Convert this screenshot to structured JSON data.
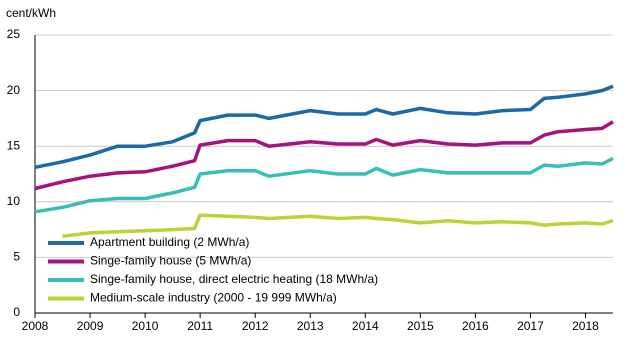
{
  "chart_data": {
    "type": "line",
    "y_label": "cent/kWh",
    "x": [
      2008,
      2008.5,
      2009,
      2009.5,
      2010,
      2010.5,
      2010.9,
      2011,
      2011.5,
      2012,
      2012.25,
      2013,
      2013.5,
      2014,
      2014.2,
      2014.5,
      2015,
      2015.5,
      2016,
      2016.5,
      2017,
      2017.25,
      2017.5,
      2018,
      2018.3,
      2018.5
    ],
    "xlim": [
      2008,
      2018.5
    ],
    "xticks": [
      2008,
      2009,
      2010,
      2011,
      2012,
      2013,
      2014,
      2015,
      2016,
      2017,
      2018
    ],
    "ylim": [
      0,
      25
    ],
    "yticks": [
      0,
      5,
      10,
      15,
      20,
      25
    ],
    "grid": true,
    "legend": "lower left",
    "series": [
      {
        "name": "Apartment building (2 MWh/a)",
        "color": "#1b6aa5",
        "values": [
          13.1,
          13.6,
          14.2,
          15.0,
          15.0,
          15.4,
          16.2,
          17.3,
          17.8,
          17.8,
          17.5,
          18.2,
          17.9,
          17.9,
          18.3,
          17.9,
          18.4,
          18.0,
          17.9,
          18.2,
          18.3,
          19.3,
          19.4,
          19.7,
          20.0,
          20.4
        ]
      },
      {
        "name": "Singe-family house (5 MWh/a)",
        "color": "#a3147c",
        "values": [
          11.2,
          11.8,
          12.3,
          12.6,
          12.7,
          13.2,
          13.7,
          15.1,
          15.5,
          15.5,
          15.0,
          15.4,
          15.2,
          15.2,
          15.6,
          15.1,
          15.5,
          15.2,
          15.1,
          15.3,
          15.3,
          16.0,
          16.3,
          16.5,
          16.6,
          17.2
        ]
      },
      {
        "name": "Singe-family house, direct electric heating (18 MWh/a)",
        "color": "#36c0b5",
        "values": [
          9.1,
          9.5,
          10.1,
          10.3,
          10.3,
          10.8,
          11.3,
          12.5,
          12.8,
          12.8,
          12.3,
          12.8,
          12.5,
          12.5,
          13.0,
          12.4,
          12.9,
          12.6,
          12.6,
          12.6,
          12.6,
          13.3,
          13.2,
          13.5,
          13.4,
          13.9
        ]
      },
      {
        "name": "Medium-scale industry (2000 - 19 999 MWh/a)",
        "color": "#b8d436",
        "values": [
          null,
          6.9,
          7.2,
          7.3,
          7.4,
          7.5,
          7.6,
          8.8,
          8.7,
          8.6,
          8.5,
          8.7,
          8.5,
          8.6,
          8.5,
          8.4,
          8.1,
          8.3,
          8.1,
          8.2,
          8.1,
          7.9,
          8.0,
          8.1,
          8.0,
          8.3
        ]
      }
    ]
  }
}
